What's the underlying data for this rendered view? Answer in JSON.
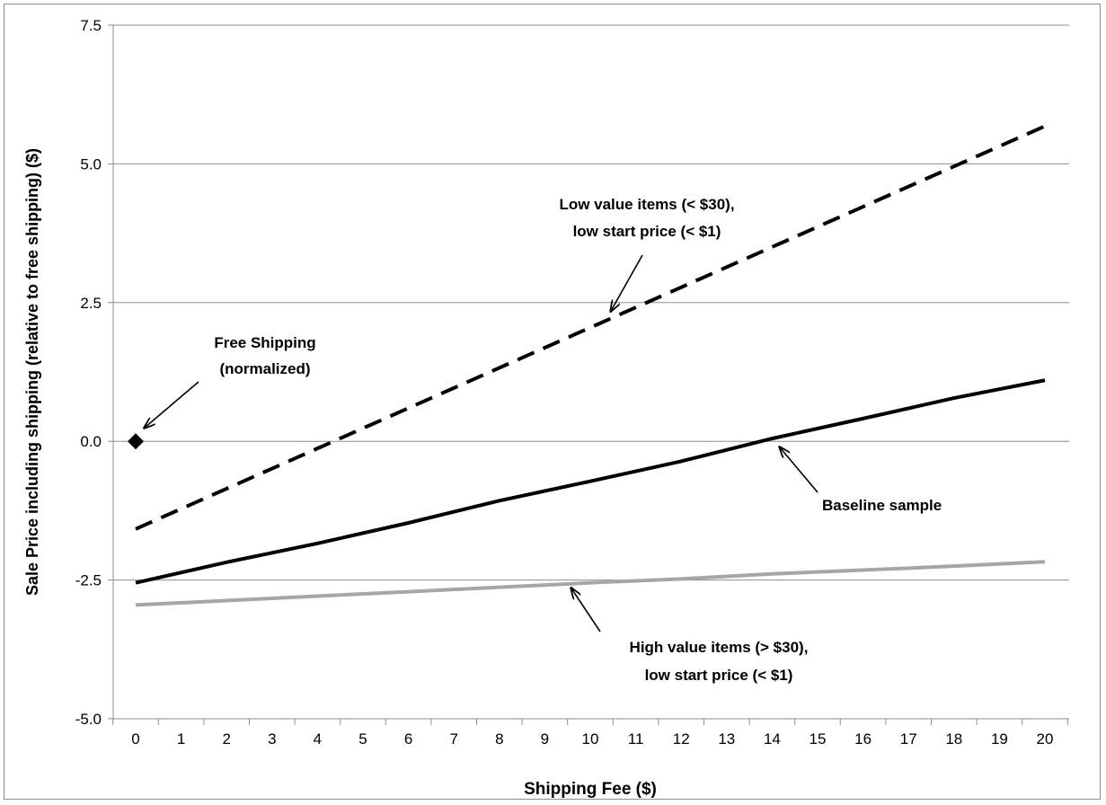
{
  "chart_data": {
    "type": "line",
    "xlabel": "Shipping Fee ($)",
    "ylabel": "Sale Price including shipping (relative to free shipping) ($)",
    "xlim": [
      0,
      20
    ],
    "ylim": [
      -5.0,
      7.5
    ],
    "x_ticks": [
      "0",
      "1",
      "2",
      "3",
      "4",
      "5",
      "6",
      "7",
      "8",
      "9",
      "10",
      "11",
      "12",
      "13",
      "14",
      "15",
      "16",
      "17",
      "18",
      "19",
      "20"
    ],
    "y_ticks": [
      "-5.0",
      "-2.5",
      "0.0",
      "2.5",
      "5.0",
      "7.5"
    ],
    "grid": "horizontal",
    "legend": "none",
    "series": [
      {
        "style": "dashed-black",
        "x": [
          0,
          20
        ],
        "values": [
          -1.58,
          5.68
        ]
      },
      {
        "style": "solid-black",
        "x": [
          0,
          2,
          4,
          6,
          8,
          10,
          12,
          14,
          16,
          18,
          20
        ],
        "values": [
          -2.55,
          -2.18,
          -1.84,
          -1.47,
          -1.07,
          -0.72,
          -0.36,
          0.05,
          0.41,
          0.78,
          1.1
        ]
      },
      {
        "style": "solid-gray",
        "x": [
          0,
          2,
          4,
          6,
          8,
          10,
          12,
          14,
          16,
          18,
          20
        ],
        "values": [
          -2.95,
          -2.87,
          -2.79,
          -2.71,
          -2.63,
          -2.55,
          -2.48,
          -2.39,
          -2.32,
          -2.25,
          -2.17
        ]
      },
      {
        "style": "diamond-marker",
        "x": [
          0
        ],
        "values": [
          0.0
        ]
      }
    ],
    "annotations": {
      "free_shipping": [
        "Free Shipping",
        "(normalized)"
      ],
      "low_value": [
        "Low value items (< $30),",
        "low start price (< $1)"
      ],
      "baseline": [
        "Baseline sample"
      ],
      "high_value": [
        "High value items (> $30),",
        "low start price (< $1)"
      ]
    },
    "colors": {
      "black": "#000000",
      "gray": "#a6a6a6",
      "grid": "#8c8c8c"
    }
  }
}
